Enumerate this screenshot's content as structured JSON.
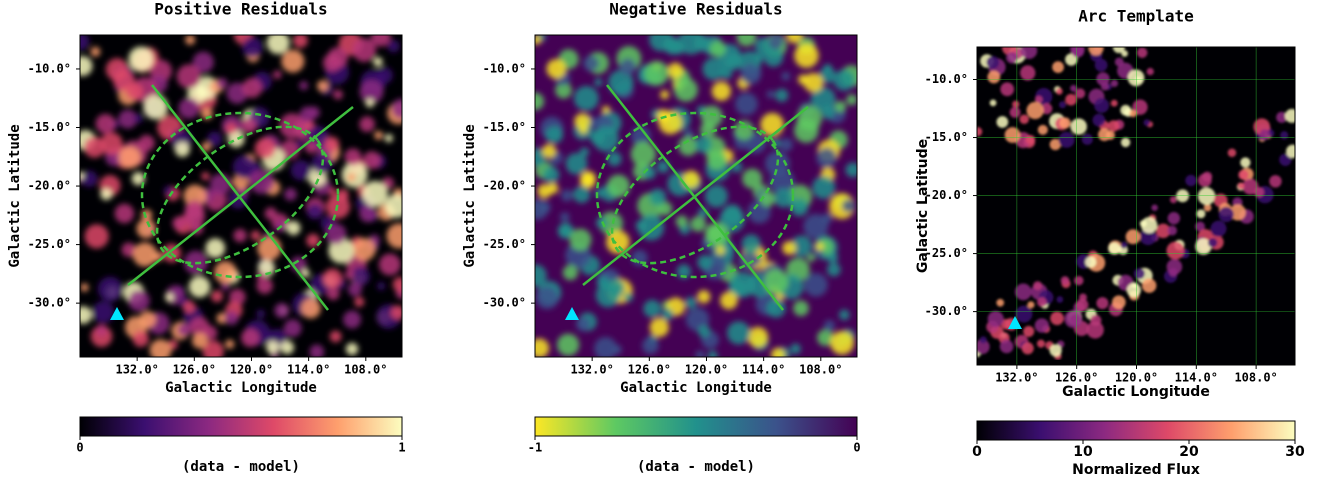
{
  "chart_data": [
    {
      "type": "image",
      "title": "Positive Residuals",
      "xlabel": "Galactic Longitude",
      "ylabel": "Galactic Latitude",
      "colormap": "magma",
      "grid": false,
      "xlim": [
        138,
        104.2
      ],
      "ylim": [
        -34.6,
        -7.1
      ],
      "xticks": [
        {
          "value": 132,
          "label": "132.0°"
        },
        {
          "value": 126,
          "label": "126.0°"
        },
        {
          "value": 120,
          "label": "120.0°"
        },
        {
          "value": 114,
          "label": "114.0°"
        },
        {
          "value": 108,
          "label": "108.0°"
        }
      ],
      "yticks": [
        {
          "value": -10,
          "label": "-10.0°"
        },
        {
          "value": -15,
          "label": "-15.0°"
        },
        {
          "value": -20,
          "label": "-20.0°"
        },
        {
          "value": -25,
          "label": "-25.0°"
        },
        {
          "value": -30,
          "label": "-30.0°"
        }
      ],
      "colorbar": {
        "label": "(data - model)",
        "lim": [
          0,
          1
        ],
        "ticks": [
          0,
          1
        ]
      }
    },
    {
      "type": "image",
      "title": "Negative Residuals",
      "xlabel": "Galactic Longitude",
      "ylabel": "Galactic Latitude",
      "colormap": "viridis_r",
      "grid": false,
      "xlim": [
        138,
        104.2
      ],
      "ylim": [
        -34.6,
        -7.1
      ],
      "xticks": [
        {
          "value": 132,
          "label": "132.0°"
        },
        {
          "value": 126,
          "label": "126.0°"
        },
        {
          "value": 120,
          "label": "120.0°"
        },
        {
          "value": 114,
          "label": "114.0°"
        },
        {
          "value": 108,
          "label": "108.0°"
        }
      ],
      "yticks": [
        {
          "value": -10,
          "label": "-10.0°"
        },
        {
          "value": -15,
          "label": "-15.0°"
        },
        {
          "value": -20,
          "label": "-20.0°"
        },
        {
          "value": -25,
          "label": "-25.0°"
        },
        {
          "value": -30,
          "label": "-30.0°"
        }
      ],
      "colorbar": {
        "label": "(data - model)",
        "lim": [
          -1,
          0
        ],
        "ticks": [
          -1,
          0
        ]
      }
    },
    {
      "type": "image",
      "title": "Arc Template",
      "xlabel": "Galactic Longitude",
      "ylabel": "Galactic Latitude",
      "colormap": "magma",
      "grid": true,
      "xlim": [
        136,
        104.1
      ],
      "ylim": [
        -34.6,
        -7.2
      ],
      "xticks": [
        {
          "value": 132,
          "label": "132.0°"
        },
        {
          "value": 126,
          "label": "126.0°"
        },
        {
          "value": 120,
          "label": "120.0°"
        },
        {
          "value": 114,
          "label": "114.0°"
        },
        {
          "value": 108,
          "label": "108.0°"
        }
      ],
      "yticks": [
        {
          "value": -10,
          "label": "-10.0°"
        },
        {
          "value": -15,
          "label": "-15.0°"
        },
        {
          "value": -20,
          "label": "-20.0°"
        },
        {
          "value": -25,
          "label": "-25.0°"
        },
        {
          "value": -30,
          "label": "-30.0°"
        }
      ],
      "colorbar": {
        "label": "Normalized Flux",
        "lim": [
          0,
          30
        ],
        "ticks": [
          0,
          10,
          20,
          30
        ]
      }
    }
  ]
}
